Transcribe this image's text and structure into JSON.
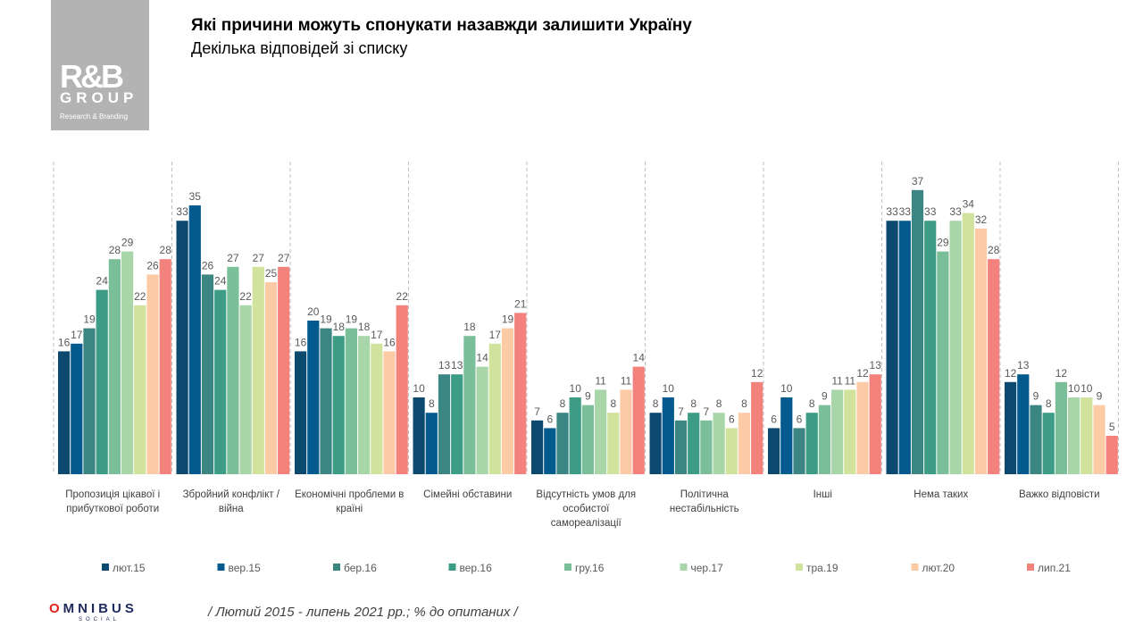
{
  "logo": {
    "rgb": "R&B",
    "group": "GROUP",
    "sub": "Research & Branding"
  },
  "header": {
    "title": "Які причини можуть спонукати назавжди залишити Україну",
    "subtitle": "Декілька відповідей  зі списку"
  },
  "footer": {
    "omnibus_o": "O",
    "omnibus_rest": "MNIBUS",
    "social": "SOCIAL",
    "note": "/ Лютий 2015 - липень 2021 рр.; % до опитаних /"
  },
  "chart_data": {
    "type": "bar",
    "title": "Які причини можуть спонукати назавжди залишити Україну",
    "subtitle": "Декілька відповідей  зі списку",
    "xlabel": "",
    "ylabel": "% до опитаних",
    "ylim": [
      0,
      40
    ],
    "grid": false,
    "legend_position": "bottom",
    "categories": [
      "Пропозиція цікавої і прибуткової роботи",
      "Збройний конфлікт / війна",
      "Економічні проблеми в країні",
      "Сімейні обставини",
      "Відсутність умов для особистої самореалізації",
      "Політична нестабільність",
      "Інші",
      "Нема таких",
      "Важко відповісти"
    ],
    "category_lines": [
      [
        "Пропозиція цікавої і",
        "прибуткової роботи"
      ],
      [
        "Збройний конфлікт /",
        "війна"
      ],
      [
        "Економічні проблеми в",
        "країні"
      ],
      [
        "Сімейні обставини"
      ],
      [
        "Відсутність умов для",
        "особистої",
        "самореалізації"
      ],
      [
        "Політична",
        "нестабільність"
      ],
      [
        "Інші"
      ],
      [
        "Нема таких"
      ],
      [
        "Важко відповісти"
      ]
    ],
    "series": [
      {
        "name": "лют.15",
        "color": "#0b4a6e",
        "values": [
          16,
          33,
          16,
          10,
          7,
          8,
          6,
          33,
          12
        ]
      },
      {
        "name": "вер.15",
        "color": "#035a8f",
        "values": [
          17,
          35,
          20,
          8,
          6,
          10,
          10,
          33,
          13
        ]
      },
      {
        "name": "бер.16",
        "color": "#3b8583",
        "values": [
          19,
          26,
          19,
          13,
          8,
          7,
          6,
          37,
          9
        ]
      },
      {
        "name": "вер.16",
        "color": "#3c9c86",
        "values": [
          24,
          24,
          18,
          13,
          10,
          8,
          8,
          33,
          8
        ]
      },
      {
        "name": "гру.16",
        "color": "#7bbf9a",
        "values": [
          28,
          27,
          19,
          18,
          9,
          7,
          9,
          29,
          12
        ]
      },
      {
        "name": "чер.17",
        "color": "#a8d6a8",
        "values": [
          29,
          22,
          18,
          14,
          11,
          8,
          11,
          33,
          10
        ]
      },
      {
        "name": "тра.19",
        "color": "#d1e29c",
        "values": [
          22,
          27,
          17,
          17,
          8,
          6,
          11,
          34,
          10
        ]
      },
      {
        "name": "лют.20",
        "color": "#fccba6",
        "values": [
          26,
          25,
          16,
          19,
          11,
          8,
          12,
          32,
          9
        ]
      },
      {
        "name": "лип.21",
        "color": "#f3827d",
        "values": [
          28,
          27,
          22,
          21,
          14,
          12,
          13,
          28,
          5
        ]
      }
    ]
  }
}
